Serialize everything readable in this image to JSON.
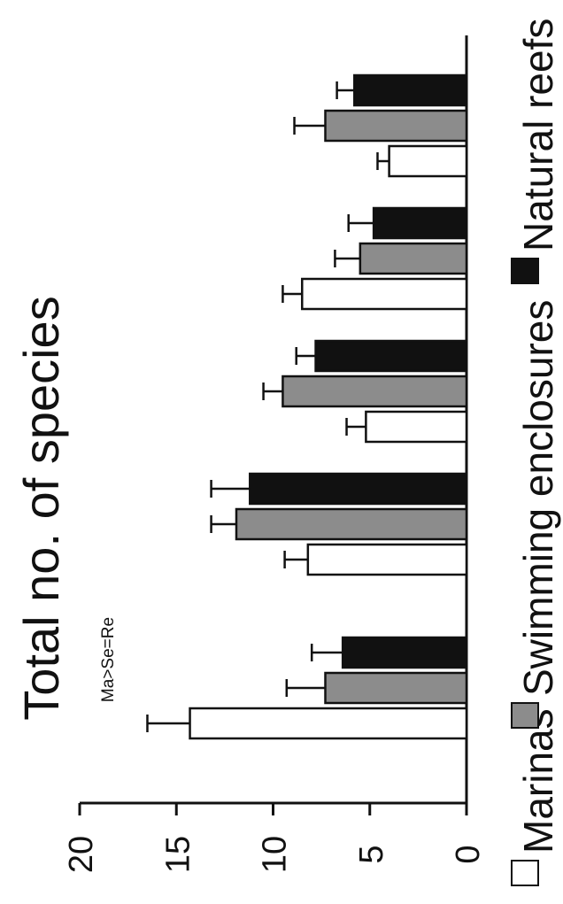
{
  "chart_data": {
    "type": "bar",
    "orientation": "horizontal",
    "rotated": true,
    "title": "Total no. of species",
    "annotation": "Ma>Se=Re",
    "ylim": [
      0,
      20
    ],
    "ticks": [
      0,
      5,
      10,
      15,
      20
    ],
    "grid": false,
    "legend_position": "bottom",
    "groups": 5,
    "series": [
      {
        "name": "Marinas",
        "color": "#ffffff",
        "values": [
          14.3,
          8.2,
          5.2,
          8.5,
          4.0
        ],
        "errors": [
          2.2,
          1.2,
          1.0,
          1.0,
          0.6
        ]
      },
      {
        "name": "Swimming enclosures",
        "color": "#8c8c8c",
        "values": [
          7.3,
          11.9,
          9.5,
          5.5,
          7.3
        ],
        "errors": [
          2.0,
          1.3,
          1.0,
          1.3,
          1.6
        ]
      },
      {
        "name": "Natural reefs",
        "color": "#111111",
        "values": [
          6.4,
          11.2,
          7.8,
          4.8,
          5.8
        ],
        "errors": [
          1.6,
          2.0,
          1.0,
          1.3,
          0.9
        ]
      }
    ]
  }
}
